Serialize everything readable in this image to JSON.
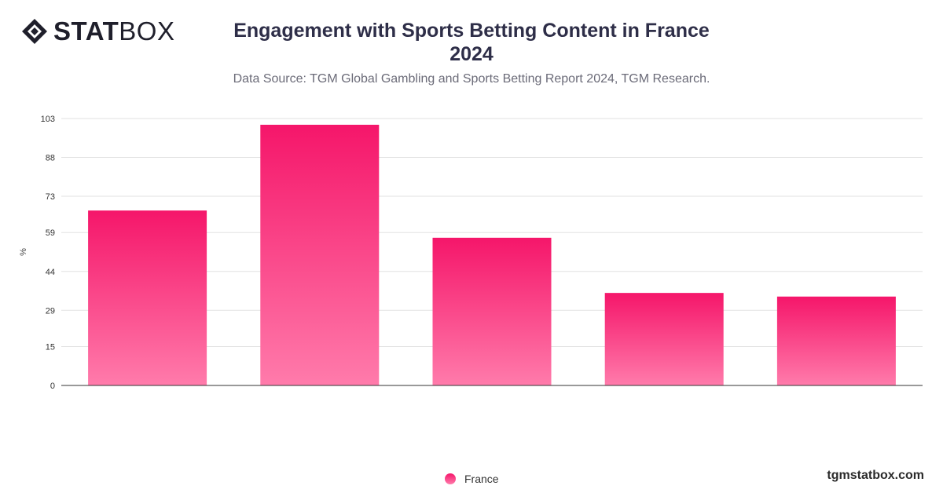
{
  "brand": {
    "logo_bold": "STAT",
    "logo_light": "BOX",
    "site": "tgmstatbox.com",
    "logo_icon": "diamond-logo-icon"
  },
  "title_line1": "Engagement with Sports Betting Content in France",
  "title_line2": "2024",
  "subtitle": "Data Source: TGM Global Gambling and Sports Betting Report 2024, TGM Research.",
  "colors": {
    "bar_top": "#f5166a",
    "bar_bottom": "#ff7bab",
    "grid": "#e2e2e2",
    "axis": "#333333",
    "text": "#2e2e48"
  },
  "chart_data": {
    "type": "bar",
    "categories": [
      "",
      "",
      "",
      "",
      ""
    ],
    "series": [
      {
        "name": "France",
        "values": [
          67.5,
          100.6,
          57.0,
          35.7,
          34.3
        ]
      }
    ],
    "title": "Engagement with Sports Betting Content in France 2024",
    "xlabel": "",
    "ylabel": "%",
    "ylim": [
      0,
      103
    ],
    "yticks": [
      0,
      15,
      29,
      44,
      59,
      73,
      88,
      103
    ],
    "grid": true,
    "legend": "bottom-center"
  }
}
